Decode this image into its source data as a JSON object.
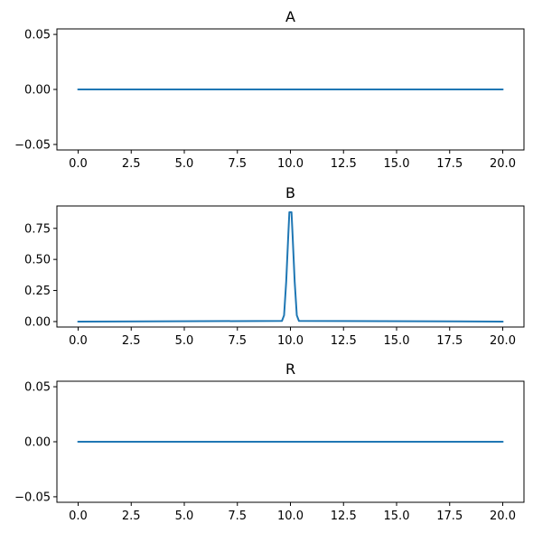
{
  "chart_data": [
    {
      "type": "line",
      "title": "A",
      "xlabel": "",
      "ylabel": "",
      "xlim": [
        -1.0,
        21.0
      ],
      "ylim": [
        -0.055,
        0.055
      ],
      "xticks": [
        "0.0",
        "2.5",
        "5.0",
        "7.5",
        "10.0",
        "12.5",
        "15.0",
        "17.5",
        "20.0"
      ],
      "yticks": [
        "0.00",
        "0.05",
        "-0.05"
      ],
      "grid": false,
      "series": [
        {
          "color": "#1f77b4",
          "x": [
            0,
            20
          ],
          "y": [
            0,
            0
          ]
        }
      ]
    },
    {
      "type": "line",
      "title": "B",
      "xlabel": "",
      "ylabel": "",
      "xlim": [
        -1.0,
        21.0
      ],
      "ylim": [
        -0.044,
        0.93
      ],
      "xticks": [
        "0.0",
        "2.5",
        "5.0",
        "7.5",
        "10.0",
        "12.5",
        "15.0",
        "17.5",
        "20.0"
      ],
      "yticks": [
        "0.00",
        "0.25",
        "0.50",
        "0.75"
      ],
      "grid": false,
      "series": [
        {
          "color": "#1f77b4",
          "x": [
            0,
            9.6,
            9.7,
            9.8,
            9.9,
            9.95,
            10.05,
            10.1,
            10.2,
            10.3,
            10.4,
            20
          ],
          "y": [
            0,
            0.005,
            0.05,
            0.32,
            0.7,
            0.88,
            0.88,
            0.7,
            0.32,
            0.05,
            0.005,
            0
          ]
        }
      ]
    },
    {
      "type": "line",
      "title": "R",
      "xlabel": "",
      "ylabel": "",
      "xlim": [
        -1.0,
        21.0
      ],
      "ylim": [
        -0.055,
        0.055
      ],
      "xticks": [
        "0.0",
        "2.5",
        "5.0",
        "7.5",
        "10.0",
        "12.5",
        "15.0",
        "17.5",
        "20.0"
      ],
      "yticks": [
        "0.00",
        "0.05",
        "-0.05"
      ],
      "grid": false,
      "series": [
        {
          "color": "#1f77b4",
          "x": [
            0,
            20
          ],
          "y": [
            0,
            0
          ]
        }
      ]
    }
  ]
}
